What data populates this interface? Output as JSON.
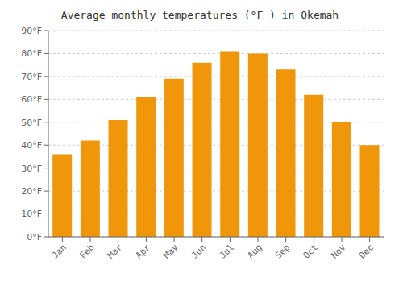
{
  "chart_data": {
    "type": "bar",
    "title": "Average monthly temperatures (°F ) in Okemah",
    "categories": [
      "Jan",
      "Feb",
      "Mar",
      "Apr",
      "May",
      "Jun",
      "Jul",
      "Aug",
      "Sep",
      "Oct",
      "Nov",
      "Dec"
    ],
    "values": [
      36,
      42,
      51,
      61,
      69,
      76,
      81,
      80,
      73,
      62,
      50,
      40
    ],
    "color": "#F0960A",
    "ylim": [
      0,
      90
    ],
    "yticks": [
      {
        "value": 0,
        "label": "0°F"
      },
      {
        "value": 10,
        "label": "10°F"
      },
      {
        "value": 20,
        "label": "20°F"
      },
      {
        "value": 30,
        "label": "30°F"
      },
      {
        "value": 40,
        "label": "40°F"
      },
      {
        "value": 50,
        "label": "50°F"
      },
      {
        "value": 60,
        "label": "60°F"
      },
      {
        "value": 70,
        "label": "70°F"
      },
      {
        "value": 80,
        "label": "80°F"
      },
      {
        "value": 90,
        "label": "90°F"
      }
    ],
    "grid": true
  }
}
